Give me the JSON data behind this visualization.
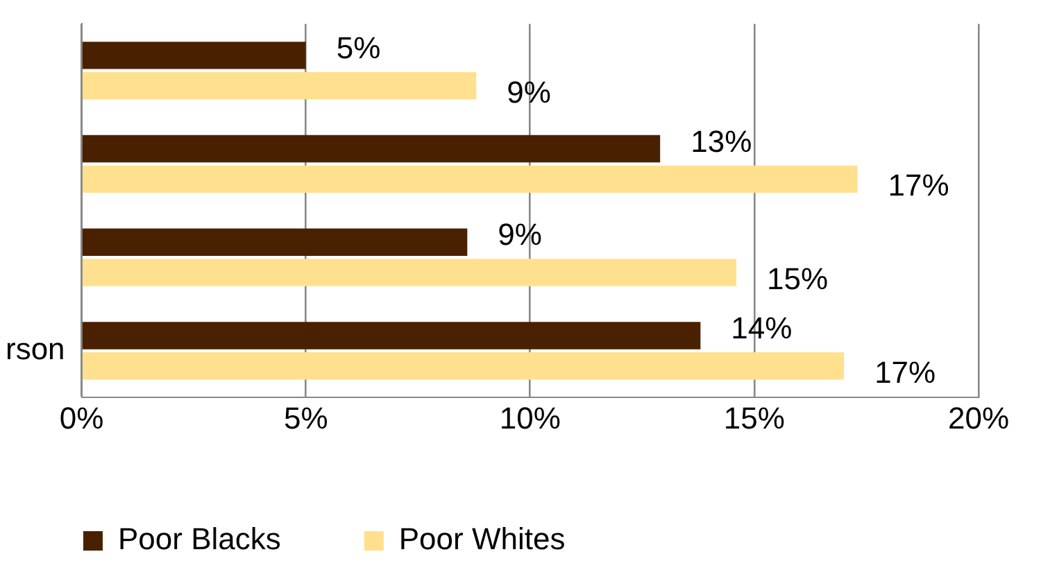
{
  "chart_data": {
    "type": "bar",
    "orientation": "horizontal",
    "categories": [
      null,
      null,
      null,
      "rson"
    ],
    "series": [
      {
        "name": "Poor Blacks",
        "color": "#4a2100",
        "values": [
          5,
          12.9,
          8.6,
          13.8
        ],
        "value_labels": [
          "5%",
          "13%",
          "9%",
          "14%"
        ]
      },
      {
        "name": "Poor Whites",
        "color": "#ffe08f",
        "values": [
          8.8,
          17.3,
          14.6,
          17.0
        ],
        "value_labels": [
          "9%",
          "17%",
          "15%",
          "17%"
        ]
      }
    ],
    "xlim": [
      0,
      20
    ],
    "xticks": [
      {
        "value": 0,
        "label": "0%"
      },
      {
        "value": 5,
        "label": "5%"
      },
      {
        "value": 10,
        "label": "10%"
      },
      {
        "value": 15,
        "label": "15%"
      },
      {
        "value": 20,
        "label": "20%"
      }
    ],
    "grid": "x",
    "legend": "bottom left"
  }
}
